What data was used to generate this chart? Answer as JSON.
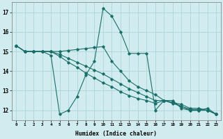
{
  "xlabel": "Humidex (Indice chaleur)",
  "ylabel": "",
  "bg_color": "#d0ecee",
  "grid_color": "#aed4d8",
  "line_color": "#1a6e6a",
  "xlim": [
    -0.5,
    23.5
  ],
  "ylim": [
    11.5,
    17.5
  ],
  "yticks": [
    12,
    13,
    14,
    15,
    16,
    17
  ],
  "xticks": [
    0,
    1,
    2,
    3,
    4,
    5,
    6,
    7,
    8,
    9,
    10,
    11,
    12,
    13,
    14,
    15,
    16,
    17,
    18,
    19,
    20,
    21,
    22,
    23
  ],
  "series": [
    [
      15.3,
      15.0,
      15.0,
      15.0,
      14.8,
      11.8,
      12.0,
      12.7,
      13.8,
      14.5,
      17.2,
      16.8,
      16.0,
      14.9,
      14.9,
      14.9,
      12.0,
      12.5,
      12.5,
      12.1,
      12.0,
      12.0,
      12.1,
      11.8
    ],
    [
      15.3,
      15.0,
      15.0,
      15.0,
      15.0,
      15.0,
      15.05,
      15.1,
      15.15,
      15.2,
      15.25,
      14.5,
      14.0,
      13.5,
      13.2,
      13.0,
      12.8,
      12.5,
      12.4,
      12.3,
      12.1,
      12.1,
      12.0,
      11.8
    ],
    [
      15.3,
      15.0,
      15.0,
      15.0,
      15.0,
      14.85,
      14.65,
      14.45,
      14.25,
      14.05,
      13.85,
      13.6,
      13.35,
      13.1,
      12.9,
      12.7,
      12.5,
      12.5,
      12.4,
      12.2,
      12.0,
      12.0,
      12.0,
      11.8
    ],
    [
      15.3,
      15.0,
      15.0,
      15.0,
      15.0,
      14.75,
      14.45,
      14.2,
      13.9,
      13.65,
      13.4,
      13.2,
      12.95,
      12.75,
      12.6,
      12.5,
      12.35,
      12.5,
      12.35,
      12.2,
      12.05,
      12.05,
      12.0,
      11.8
    ]
  ]
}
